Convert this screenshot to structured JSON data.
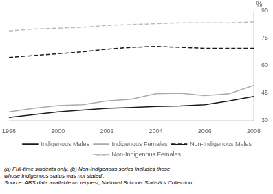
{
  "chart_data": {
    "type": "line",
    "ylabel": "%",
    "x": [
      1998,
      1999,
      2000,
      2001,
      2002,
      2003,
      2004,
      2005,
      2006,
      2007,
      2008
    ],
    "series": [
      {
        "name": "Indigenous Males",
        "color": "#1a1a1a",
        "line_style": "solid",
        "values": [
          31.5,
          33.0,
          34.5,
          35.5,
          36.5,
          37.0,
          37.5,
          37.8,
          38.5,
          40.5,
          43.0
        ]
      },
      {
        "name": "Indigenous Females",
        "color": "#aaaaaa",
        "line_style": "solid",
        "values": [
          34.5,
          36.5,
          38.0,
          38.5,
          40.5,
          41.5,
          44.5,
          44.8,
          43.5,
          44.5,
          49.0
        ]
      },
      {
        "name": "Non-Indigenous Males",
        "color": "#1a1a1a",
        "line_style": "dashed",
        "values": [
          64.5,
          65.5,
          66.5,
          67.5,
          69.0,
          70.0,
          70.5,
          70.0,
          69.5,
          69.5,
          69.5
        ]
      },
      {
        "name": "Non-Indigenous Females",
        "color": "#bbbbbb",
        "line_style": "dashed",
        "values": [
          79.0,
          80.0,
          80.5,
          81.0,
          82.0,
          82.5,
          83.0,
          83.5,
          83.5,
          83.5,
          84.0
        ]
      }
    ],
    "xlim": [
      1998,
      2008
    ],
    "xticks": [
      1998,
      2000,
      2002,
      2004,
      2006,
      2008
    ],
    "ylim": [
      30,
      90
    ],
    "yticks": [
      30,
      45,
      60,
      75,
      90
    ],
    "grid": false,
    "legend": "bottom",
    "annotations": [
      "(a) Full-time students only. (b) Non-Indigenous series includes those",
      "whose Indigenous status was not stated'.",
      "Source: ABS data available on request, National Schools Statistics Collection."
    ]
  }
}
